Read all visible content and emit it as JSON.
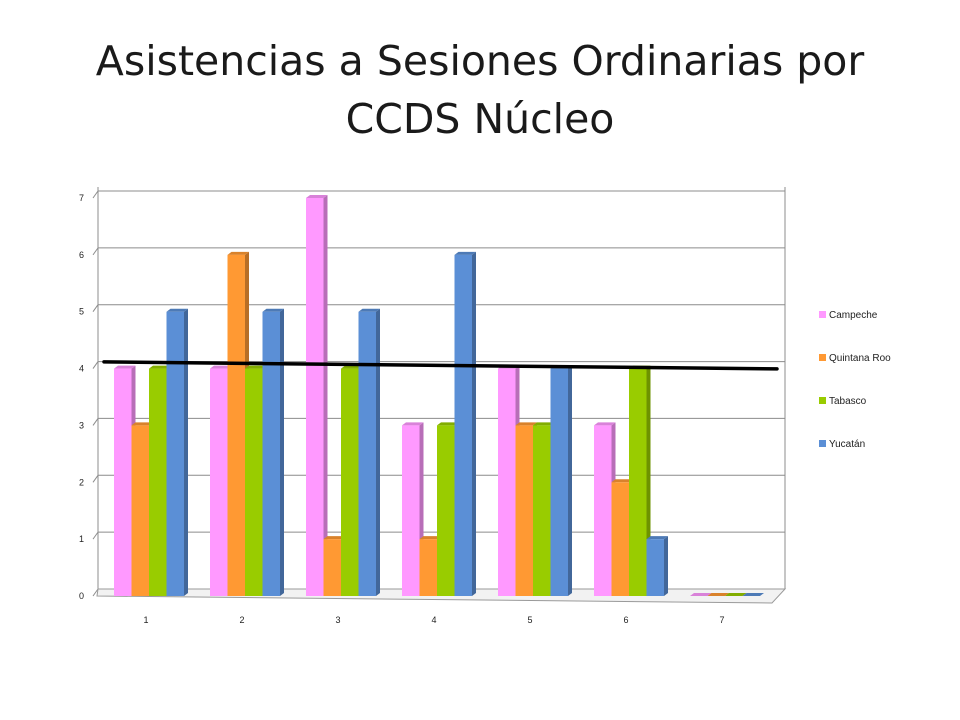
{
  "chart_data": {
    "type": "bar",
    "title": "Asistencias a Sesiones Ordinarias por CCDS Núcleo",
    "categories": [
      "1",
      "2",
      "3",
      "4",
      "5",
      "6",
      "7"
    ],
    "series": [
      {
        "name": "Campeche",
        "color": "#ff99ff",
        "values": [
          4,
          4,
          7,
          3,
          4,
          3,
          0
        ]
      },
      {
        "name": "Quintana Roo",
        "color": "#ff9933",
        "values": [
          3,
          6,
          1,
          1,
          3,
          2,
          0
        ]
      },
      {
        "name": "Tabasco",
        "color": "#99cc00",
        "values": [
          4,
          4,
          4,
          3,
          3,
          4,
          0
        ]
      },
      {
        "name": "Yucatán",
        "color": "#5b8fd6",
        "values": [
          5,
          5,
          5,
          6,
          4,
          1,
          0
        ]
      }
    ],
    "yticks": [
      "0",
      "1",
      "2",
      "3",
      "4",
      "5",
      "6",
      "7"
    ],
    "ylim": [
      0,
      7
    ],
    "grid": true,
    "legend_position": "right",
    "reference_line": {
      "value": 4.1,
      "color": "#000000"
    }
  }
}
